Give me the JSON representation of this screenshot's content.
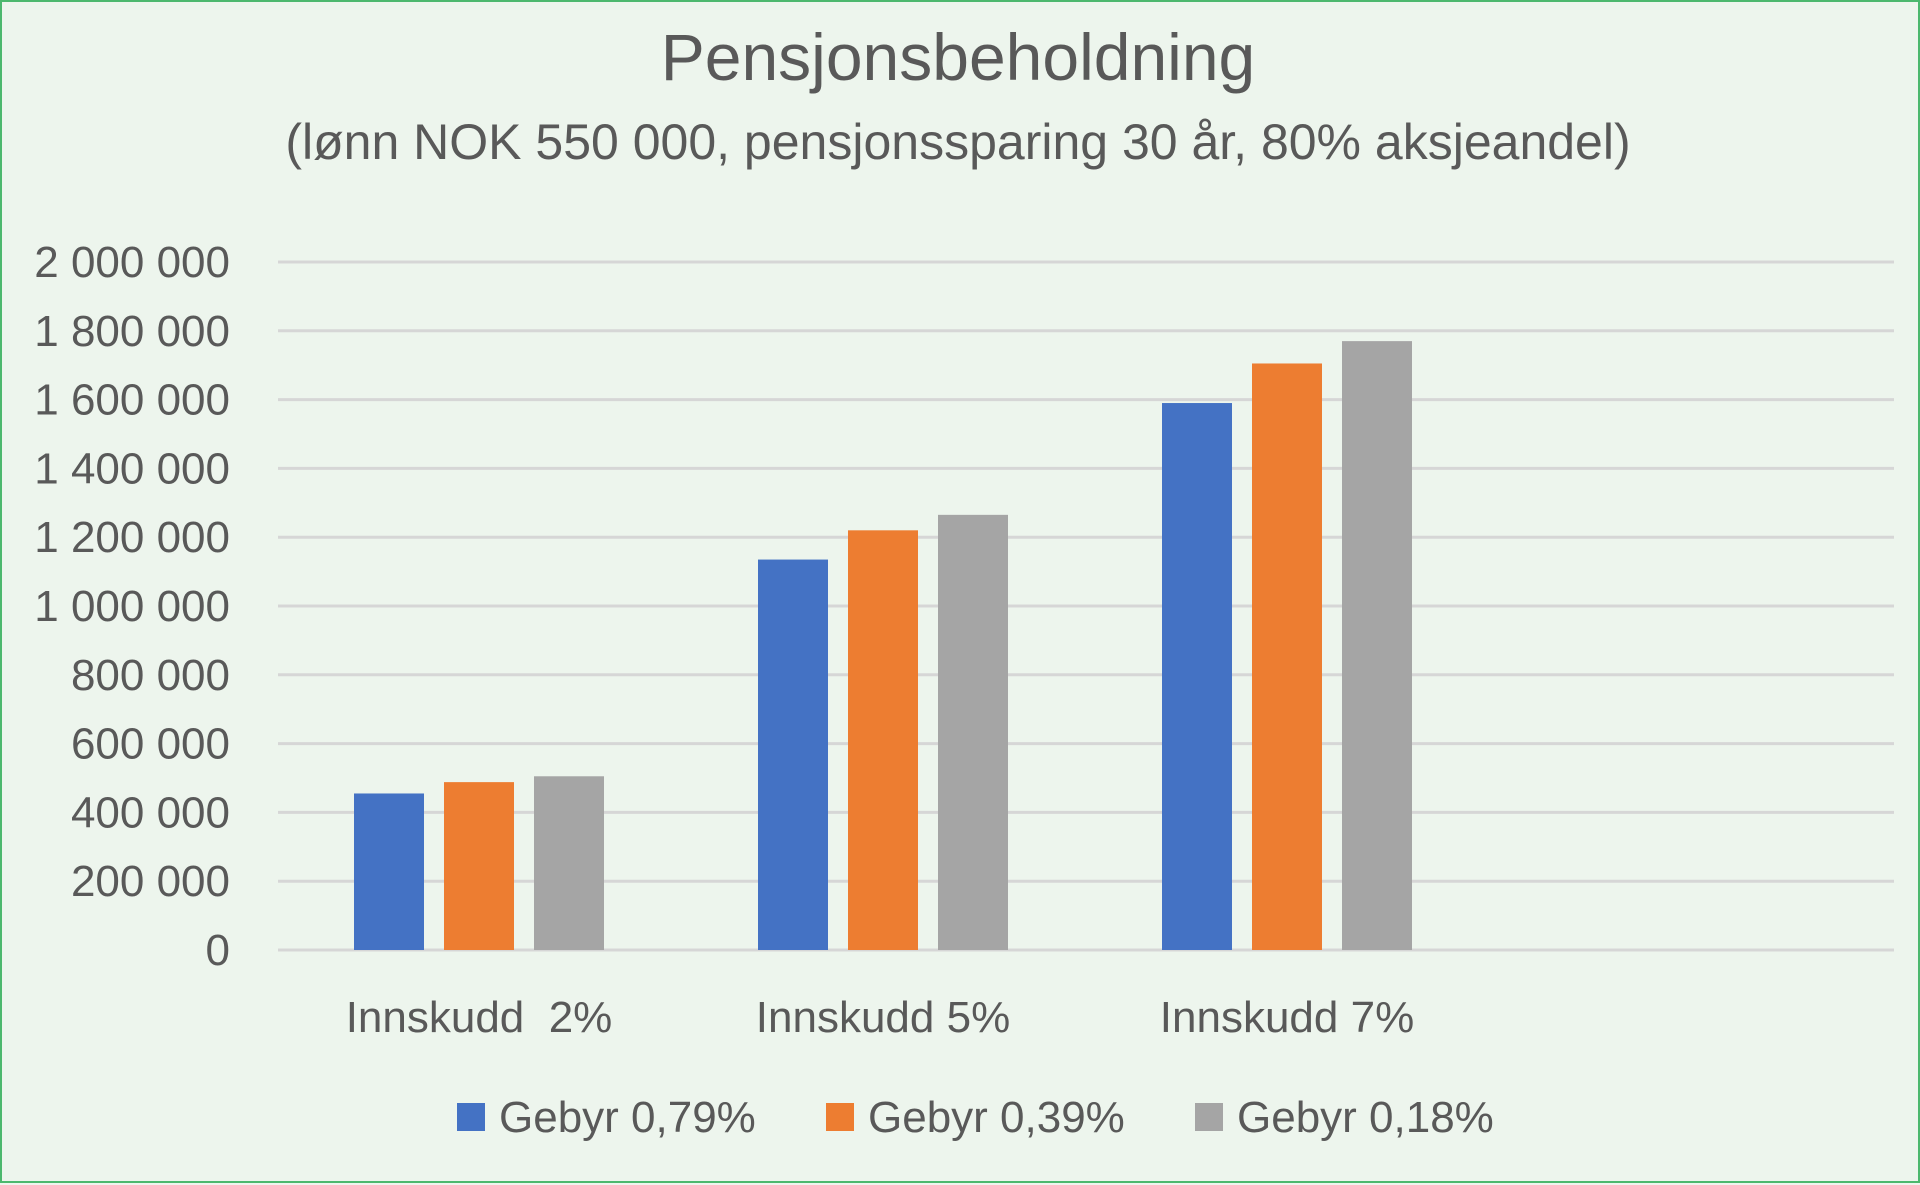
{
  "chart_data": {
    "type": "bar",
    "title": "Pensjonsbeholdning",
    "subtitle": "(lønn NOK 550 000, pensjonssparing 30 år, 80% aksjeandel)",
    "categories": [
      "Innskudd  2%",
      "Innskudd 5%",
      "Innskudd 7%"
    ],
    "series": [
      {
        "name": "Gebyr 0,79%",
        "color": "#4472c4",
        "values": [
          455000,
          1135000,
          1590000
        ]
      },
      {
        "name": "Gebyr 0,39%",
        "color": "#ed7d31",
        "values": [
          488000,
          1220000,
          1705000
        ]
      },
      {
        "name": "Gebyr 0,18%",
        "color": "#a5a5a5",
        "values": [
          505000,
          1265000,
          1770000
        ]
      }
    ],
    "ylim": [
      0,
      2000000
    ],
    "yticks": [
      "0",
      "200 000",
      "400 000",
      "600 000",
      "800 000",
      "1 000 000",
      "1 200 000",
      "1 400 000",
      "1 600 000",
      "1 800 000",
      "2 000 000"
    ],
    "xlabel": "",
    "ylabel": "",
    "grid": true,
    "legend_position": "bottom"
  }
}
